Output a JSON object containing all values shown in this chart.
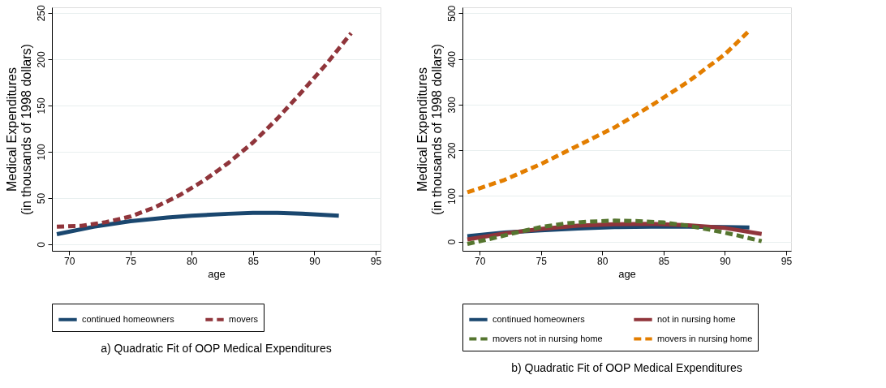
{
  "chart_data": [
    {
      "type": "line",
      "title": "a) Quadratic Fit of OOP Medical Expenditures",
      "xlabel": "age",
      "ylabel": "Medical Expenditures\n(in thousands of 1998 dollars)",
      "xlim": [
        68.6,
        95.4
      ],
      "ylim": [
        -7,
        256
      ],
      "xticks": [
        70,
        75,
        80,
        85,
        90,
        95
      ],
      "yticks": [
        0,
        50,
        100,
        150,
        200,
        250
      ],
      "grid": "y",
      "legend": "bottom",
      "series": [
        {
          "name": "continued homeowners",
          "color": "#1a476f",
          "line_style": "solid",
          "x": [
            69,
            72,
            75,
            78,
            80,
            83,
            85,
            87,
            89,
            92
          ],
          "values": [
            11,
            19,
            25,
            29,
            31,
            33,
            34,
            34,
            33,
            31
          ]
        },
        {
          "name": "movers",
          "color": "#90353b",
          "line_style": "dashed",
          "x": [
            69,
            71,
            73,
            75,
            77,
            79,
            81,
            83,
            85,
            87,
            89,
            91,
            93
          ],
          "values": [
            19,
            20,
            24,
            30,
            40,
            53,
            69,
            88,
            110,
            136,
            165,
            195,
            228
          ]
        }
      ]
    },
    {
      "type": "line",
      "title": "b) Quadratic Fit of OOP Medical Expenditures",
      "xlabel": "age",
      "ylabel": "Medical Expenditures\n(in thousands of 1998 dollars)",
      "xlim": [
        68.6,
        95.4
      ],
      "ylim": [
        -20,
        513
      ],
      "xticks": [
        70,
        75,
        80,
        85,
        90,
        95
      ],
      "yticks": [
        0,
        100,
        200,
        300,
        400,
        500
      ],
      "grid": "y",
      "legend": "bottom",
      "series": [
        {
          "name": "continued homeowners",
          "color": "#1a476f",
          "line_style": "solid",
          "x": [
            69,
            72,
            75,
            78,
            81,
            84,
            87,
            90,
            92
          ],
          "values": [
            12,
            20,
            25,
            29,
            32,
            33,
            33,
            32,
            31
          ]
        },
        {
          "name": "not in nursing home",
          "color": "#90353b",
          "line_style": "solid",
          "x": [
            69,
            72,
            75,
            78,
            81,
            84,
            87,
            90,
            93
          ],
          "values": [
            5,
            18,
            28,
            35,
            38,
            39,
            36,
            30,
            17
          ]
        },
        {
          "name": "movers not in nursing home",
          "color": "#55752f",
          "line_style": "dashed",
          "x": [
            69,
            71,
            73,
            75,
            77,
            79,
            81,
            83,
            85,
            87,
            89,
            91,
            93
          ],
          "values": [
            -5,
            7,
            20,
            32,
            40,
            44,
            46,
            45,
            42,
            35,
            25,
            14,
            1
          ]
        },
        {
          "name": "movers in nursing home",
          "color": "#e37e00",
          "line_style": "dashed",
          "x": [
            69,
            72,
            75,
            78,
            81,
            84,
            87,
            90,
            92
          ],
          "values": [
            108,
            135,
            170,
            210,
            250,
            298,
            350,
            410,
            462
          ]
        }
      ]
    }
  ]
}
